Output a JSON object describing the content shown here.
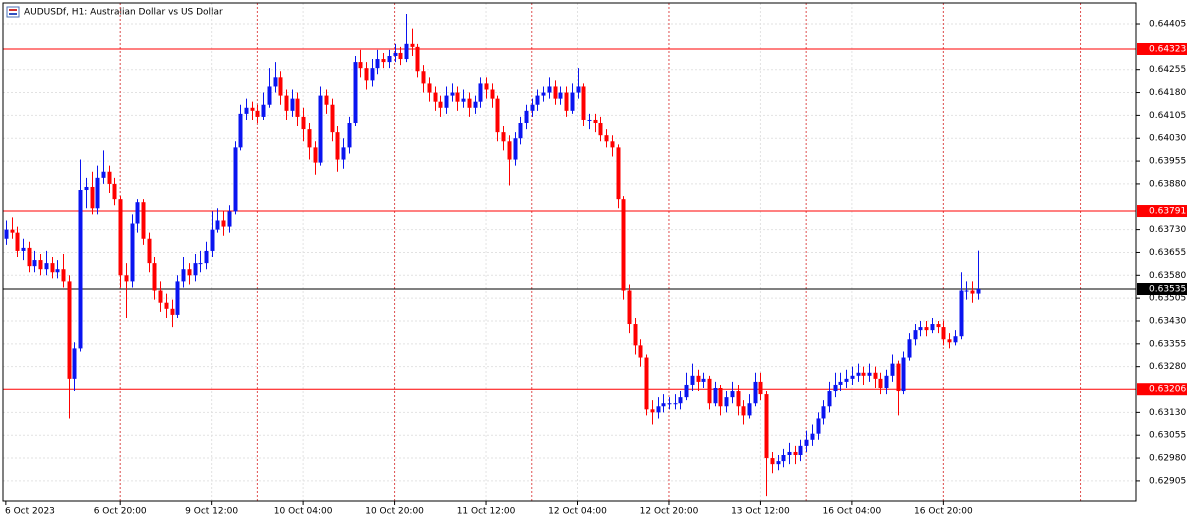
{
  "chart_data": {
    "type": "candlestick",
    "title": "AUDUSDf, H1:  Australian Dollar vs US Dollar",
    "bull_color": "#0a14f0",
    "bear_color": "#ff0000",
    "grid": true,
    "xlim": [
      -0.5,
      197.7
    ],
    "xticks": [
      {
        "value": 0,
        "label": "6 Oct 2023"
      },
      {
        "value": 20,
        "label": "6 Oct 20:00"
      },
      {
        "value": 36,
        "label": "9 Oct 12:00"
      },
      {
        "value": 52,
        "label": "10 Oct 04:00"
      },
      {
        "value": 68,
        "label": "10 Oct 20:00"
      },
      {
        "value": 84,
        "label": "11 Oct 12:00"
      },
      {
        "value": 100,
        "label": "12 Oct 04:00"
      },
      {
        "value": 116,
        "label": "12 Oct 20:00"
      },
      {
        "value": 132,
        "label": "13 Oct 12:00"
      },
      {
        "value": 148,
        "label": "16 Oct 04:00"
      },
      {
        "value": 164,
        "label": "16 Oct 20:00"
      }
    ],
    "separators": [
      20,
      44,
      68,
      92,
      116,
      140,
      164,
      188
    ],
    "ylim": [
      0.62839,
      0.64474
    ],
    "yticks": [
      0.64405,
      0.64255,
      {
        "value": 0.6418,
        "label": "0.64180"
      },
      0.64105,
      {
        "value": 0.6403,
        "label": "0.64030"
      },
      0.63955,
      {
        "value": 0.6388,
        "label": "0.63880"
      },
      {
        "value": 0.6373,
        "label": "0.63730"
      },
      0.63655,
      {
        "value": 0.6358,
        "label": "0.63580"
      },
      0.63505,
      {
        "value": 0.6343,
        "label": "0.63430"
      },
      0.63355,
      {
        "value": 0.6328,
        "label": "0.63280"
      },
      {
        "value": 0.6313,
        "label": "0.63130"
      },
      0.63055,
      {
        "value": 0.6298,
        "label": "0.62980"
      },
      0.62905
    ],
    "hlines": [
      {
        "value": 0.64323,
        "color": "#ff0000"
      },
      {
        "value": 0.63791,
        "color": "#ff0000"
      },
      {
        "value": 0.63206,
        "color": "#ff0000"
      },
      {
        "value": 0.63535,
        "color": "#000000"
      }
    ],
    "ohlc": [
      [
        0.637,
        0.6376,
        0.6368,
        0.6373
      ],
      [
        0.6373,
        0.6377,
        0.637,
        0.6372
      ],
      [
        0.6372,
        0.6374,
        0.6364,
        0.6366
      ],
      [
        0.6366,
        0.637,
        0.6363,
        0.6367
      ],
      [
        0.6367,
        0.6369,
        0.6359,
        0.6361
      ],
      [
        0.6361,
        0.6366,
        0.6359,
        0.6363
      ],
      [
        0.6363,
        0.6365,
        0.6358,
        0.636
      ],
      [
        0.636,
        0.6366,
        0.6358,
        0.6362
      ],
      [
        0.6362,
        0.6364,
        0.6357,
        0.6359
      ],
      [
        0.6359,
        0.6363,
        0.6357,
        0.636
      ],
      [
        0.636,
        0.6365,
        0.6354,
        0.6356
      ],
      [
        0.6356,
        0.6358,
        0.6311,
        0.6324
      ],
      [
        0.6324,
        0.6336,
        0.632,
        0.6334
      ],
      [
        0.6334,
        0.6396,
        0.6333,
        0.6386
      ],
      [
        0.6386,
        0.639,
        0.638,
        0.6387
      ],
      [
        0.6387,
        0.6392,
        0.6378,
        0.638
      ],
      [
        0.638,
        0.6394,
        0.6378,
        0.639
      ],
      [
        0.639,
        0.6399,
        0.6388,
        0.6392
      ],
      [
        0.6392,
        0.6394,
        0.6385,
        0.6388
      ],
      [
        0.6388,
        0.639,
        0.6381,
        0.6383
      ],
      [
        0.6383,
        0.6384,
        0.6354,
        0.6358
      ],
      [
        0.6358,
        0.6362,
        0.6344,
        0.6356
      ],
      [
        0.6356,
        0.6378,
        0.6354,
        0.6375
      ],
      [
        0.6375,
        0.6383,
        0.6372,
        0.6382
      ],
      [
        0.6382,
        0.6383,
        0.6368,
        0.637
      ],
      [
        0.637,
        0.6372,
        0.6359,
        0.6362
      ],
      [
        0.6362,
        0.6364,
        0.635,
        0.6353
      ],
      [
        0.6353,
        0.6356,
        0.6346,
        0.6349
      ],
      [
        0.6349,
        0.6352,
        0.6344,
        0.6347
      ],
      [
        0.6347,
        0.635,
        0.6341,
        0.6345
      ],
      [
        0.6345,
        0.6358,
        0.6344,
        0.6356
      ],
      [
        0.6356,
        0.6364,
        0.6354,
        0.636
      ],
      [
        0.636,
        0.6362,
        0.6355,
        0.6358
      ],
      [
        0.6358,
        0.6365,
        0.6356,
        0.6362
      ],
      [
        0.6362,
        0.6366,
        0.6359,
        0.6362
      ],
      [
        0.6362,
        0.6369,
        0.636,
        0.6366
      ],
      [
        0.6366,
        0.6379,
        0.6364,
        0.6373
      ],
      [
        0.6373,
        0.638,
        0.6372,
        0.6376
      ],
      [
        0.6376,
        0.6379,
        0.6371,
        0.6374
      ],
      [
        0.6374,
        0.6381,
        0.6372,
        0.6379
      ],
      [
        0.6379,
        0.6402,
        0.6378,
        0.64
      ],
      [
        0.64,
        0.6414,
        0.6399,
        0.6411
      ],
      [
        0.6411,
        0.6416,
        0.6409,
        0.6413
      ],
      [
        0.6413,
        0.6415,
        0.6409,
        0.6412
      ],
      [
        0.6412,
        0.6414,
        0.6408,
        0.641
      ],
      [
        0.641,
        0.6418,
        0.6409,
        0.6414
      ],
      [
        0.6414,
        0.6426,
        0.6413,
        0.642
      ],
      [
        0.642,
        0.6428,
        0.6418,
        0.6423
      ],
      [
        0.6423,
        0.6425,
        0.6414,
        0.6417
      ],
      [
        0.6417,
        0.6419,
        0.6409,
        0.6412
      ],
      [
        0.6412,
        0.6419,
        0.641,
        0.6416
      ],
      [
        0.6416,
        0.6418,
        0.6407,
        0.641
      ],
      [
        0.641,
        0.6413,
        0.6402,
        0.6406
      ],
      [
        0.6406,
        0.6408,
        0.6396,
        0.64
      ],
      [
        0.64,
        0.6402,
        0.6391,
        0.6395
      ],
      [
        0.6395,
        0.642,
        0.6394,
        0.6417
      ],
      [
        0.6417,
        0.6419,
        0.6411,
        0.6414
      ],
      [
        0.6414,
        0.6416,
        0.6402,
        0.6405
      ],
      [
        0.6405,
        0.6407,
        0.6392,
        0.6396
      ],
      [
        0.6396,
        0.6403,
        0.6393,
        0.64
      ],
      [
        0.64,
        0.641,
        0.6398,
        0.6408
      ],
      [
        0.6408,
        0.643,
        0.6407,
        0.6428
      ],
      [
        0.6428,
        0.6432,
        0.6423,
        0.6426
      ],
      [
        0.6426,
        0.6428,
        0.6419,
        0.6422
      ],
      [
        0.6422,
        0.6429,
        0.642,
        0.6426
      ],
      [
        0.6426,
        0.6432,
        0.6424,
        0.6429
      ],
      [
        0.6429,
        0.6431,
        0.6426,
        0.6428
      ],
      [
        0.6428,
        0.6432,
        0.6426,
        0.643
      ],
      [
        0.643,
        0.6434,
        0.6428,
        0.6431
      ],
      [
        0.6431,
        0.6433,
        0.6427,
        0.6429
      ],
      [
        0.6429,
        0.64438,
        0.6428,
        0.6434
      ],
      [
        0.6434,
        0.6439,
        0.643,
        0.6433
      ],
      [
        0.6433,
        0.6434,
        0.6423,
        0.6425
      ],
      [
        0.6425,
        0.6427,
        0.6418,
        0.6421
      ],
      [
        0.6421,
        0.6423,
        0.6415,
        0.6418
      ],
      [
        0.6418,
        0.642,
        0.6412,
        0.6415
      ],
      [
        0.6415,
        0.6417,
        0.641,
        0.6413
      ],
      [
        0.6413,
        0.642,
        0.6411,
        0.6417
      ],
      [
        0.6417,
        0.6421,
        0.6415,
        0.6418
      ],
      [
        0.6418,
        0.642,
        0.6412,
        0.6415
      ],
      [
        0.6415,
        0.6419,
        0.6413,
        0.6416
      ],
      [
        0.6416,
        0.6418,
        0.641,
        0.6413
      ],
      [
        0.6413,
        0.6417,
        0.6411,
        0.6415
      ],
      [
        0.6415,
        0.6423,
        0.6413,
        0.6421
      ],
      [
        0.6421,
        0.6423,
        0.6416,
        0.6419
      ],
      [
        0.6419,
        0.6421,
        0.6413,
        0.6416
      ],
      [
        0.6416,
        0.6417,
        0.6402,
        0.6405
      ],
      [
        0.6405,
        0.6407,
        0.6399,
        0.6402
      ],
      [
        0.6402,
        0.6404,
        0.63875,
        0.6396
      ],
      [
        0.6396,
        0.6405,
        0.6394,
        0.6403
      ],
      [
        0.6403,
        0.641,
        0.6401,
        0.6408
      ],
      [
        0.6408,
        0.6414,
        0.6406,
        0.6412
      ],
      [
        0.6412,
        0.6416,
        0.641,
        0.6414
      ],
      [
        0.6414,
        0.6419,
        0.6412,
        0.6417
      ],
      [
        0.6417,
        0.642,
        0.6415,
        0.6418
      ],
      [
        0.6418,
        0.6423,
        0.6416,
        0.642
      ],
      [
        0.642,
        0.6422,
        0.6414,
        0.6416
      ],
      [
        0.6416,
        0.642,
        0.6414,
        0.6418
      ],
      [
        0.6418,
        0.642,
        0.641,
        0.6412
      ],
      [
        0.6412,
        0.6421,
        0.6411,
        0.6418
      ],
      [
        0.6418,
        0.6426,
        0.6416,
        0.642
      ],
      [
        0.642,
        0.6421,
        0.6407,
        0.6409
      ],
      [
        0.6409,
        0.6411,
        0.6406,
        0.6409
      ],
      [
        0.6409,
        0.6411,
        0.6405,
        0.6408
      ],
      [
        0.6408,
        0.641,
        0.6402,
        0.6404
      ],
      [
        0.6404,
        0.6406,
        0.64,
        0.6402
      ],
      [
        0.6402,
        0.6404,
        0.6397,
        0.64
      ],
      [
        0.64,
        0.6401,
        0.638,
        0.6383
      ],
      [
        0.6383,
        0.6384,
        0.635,
        0.6353
      ],
      [
        0.6353,
        0.6355,
        0.6339,
        0.6342
      ],
      [
        0.6342,
        0.6344,
        0.6332,
        0.6335
      ],
      [
        0.6335,
        0.6337,
        0.6328,
        0.6331
      ],
      [
        0.6331,
        0.6332,
        0.6312,
        0.6314
      ],
      [
        0.6314,
        0.6317,
        0.6309,
        0.6313
      ],
      [
        0.6313,
        0.6318,
        0.6311,
        0.6315
      ],
      [
        0.6315,
        0.6319,
        0.6313,
        0.6316
      ],
      [
        0.6316,
        0.6318,
        0.6314,
        0.6316
      ],
      [
        0.6316,
        0.6319,
        0.6314,
        0.6316
      ],
      [
        0.6316,
        0.632,
        0.6314,
        0.6318
      ],
      [
        0.6318,
        0.6326,
        0.6317,
        0.6322
      ],
      [
        0.6322,
        0.6329,
        0.632,
        0.6325
      ],
      [
        0.6325,
        0.6327,
        0.632,
        0.6323
      ],
      [
        0.6323,
        0.6326,
        0.6321,
        0.6324
      ],
      [
        0.6324,
        0.6325,
        0.6314,
        0.6316
      ],
      [
        0.6316,
        0.6323,
        0.6315,
        0.6321
      ],
      [
        0.6321,
        0.6322,
        0.6312,
        0.6315
      ],
      [
        0.6315,
        0.632,
        0.6313,
        0.6318
      ],
      [
        0.6318,
        0.6323,
        0.6316,
        0.632
      ],
      [
        0.632,
        0.6322,
        0.6312,
        0.6315
      ],
      [
        0.6315,
        0.6317,
        0.6309,
        0.6312
      ],
      [
        0.6312,
        0.6319,
        0.6311,
        0.6316
      ],
      [
        0.6316,
        0.6326,
        0.6315,
        0.6323
      ],
      [
        0.6323,
        0.6326,
        0.6317,
        0.6319
      ],
      [
        0.6319,
        0.632,
        0.62855,
        0.6298
      ],
      [
        0.6298,
        0.63,
        0.6293,
        0.6296
      ],
      [
        0.6296,
        0.6299,
        0.6294,
        0.6297
      ],
      [
        0.6297,
        0.6301,
        0.6295,
        0.6299
      ],
      [
        0.6299,
        0.6303,
        0.6296,
        0.63
      ],
      [
        0.63,
        0.6302,
        0.6296,
        0.6299
      ],
      [
        0.6299,
        0.6304,
        0.6297,
        0.6302
      ],
      [
        0.6302,
        0.6307,
        0.63,
        0.6304
      ],
      [
        0.6304,
        0.6309,
        0.6302,
        0.6306
      ],
      [
        0.6306,
        0.6313,
        0.6304,
        0.6311
      ],
      [
        0.6311,
        0.6317,
        0.6309,
        0.6315
      ],
      [
        0.6315,
        0.6323,
        0.6313,
        0.632
      ],
      [
        0.632,
        0.6326,
        0.6318,
        0.6322
      ],
      [
        0.6322,
        0.6326,
        0.632,
        0.6323
      ],
      [
        0.6323,
        0.6327,
        0.6321,
        0.6324
      ],
      [
        0.6324,
        0.6328,
        0.6322,
        0.6325
      ],
      [
        0.6325,
        0.6329,
        0.6323,
        0.6326
      ],
      [
        0.6326,
        0.6328,
        0.6322,
        0.6325
      ],
      [
        0.6325,
        0.6329,
        0.6323,
        0.6326
      ],
      [
        0.6326,
        0.6328,
        0.6321,
        0.6324
      ],
      [
        0.6324,
        0.6326,
        0.6319,
        0.6321
      ],
      [
        0.6321,
        0.6327,
        0.6319,
        0.6325
      ],
      [
        0.6325,
        0.6332,
        0.6323,
        0.6329
      ],
      [
        0.6329,
        0.633,
        0.6312,
        0.632
      ],
      [
        0.632,
        0.6333,
        0.6319,
        0.6331
      ],
      [
        0.6331,
        0.6339,
        0.633,
        0.6337
      ],
      [
        0.6337,
        0.6342,
        0.6335,
        0.634
      ],
      [
        0.634,
        0.6343,
        0.6338,
        0.6341
      ],
      [
        0.6341,
        0.6343,
        0.6338,
        0.634
      ],
      [
        0.634,
        0.6344,
        0.6339,
        0.6342
      ],
      [
        0.6342,
        0.6343,
        0.6339,
        0.6341
      ],
      [
        0.6341,
        0.6343,
        0.6335,
        0.6337
      ],
      [
        0.6337,
        0.6339,
        0.6334,
        0.6336
      ],
      [
        0.6336,
        0.634,
        0.6335,
        0.6338
      ],
      [
        0.6338,
        0.6359,
        0.6337,
        0.6353
      ],
      [
        0.6353,
        0.6356,
        0.635,
        0.6353
      ],
      [
        0.6353,
        0.6356,
        0.6349,
        0.6352
      ],
      [
        0.6352,
        0.63661,
        0.635,
        0.63535
      ]
    ]
  }
}
